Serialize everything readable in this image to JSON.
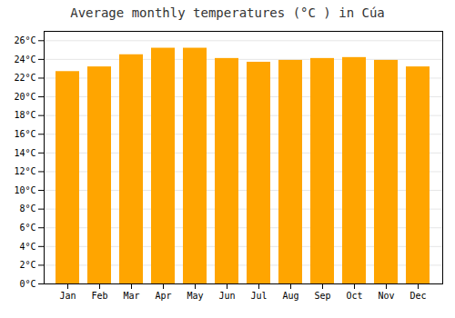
{
  "chart_data": {
    "type": "bar",
    "title": "Average monthly temperatures (°C ) in Cúa",
    "categories": [
      "Jan",
      "Feb",
      "Mar",
      "Apr",
      "May",
      "Jun",
      "Jul",
      "Aug",
      "Sep",
      "Oct",
      "Nov",
      "Dec"
    ],
    "values": [
      22.7,
      23.2,
      24.5,
      25.2,
      25.2,
      24.1,
      23.7,
      23.9,
      24.1,
      24.2,
      23.9,
      23.2
    ],
    "color": "#FFA500",
    "ylim": [
      0,
      27
    ],
    "yticks": [
      {
        "value": 0,
        "label": "0°C"
      },
      {
        "value": 2,
        "label": "2°C"
      },
      {
        "value": 4,
        "label": "4°C"
      },
      {
        "value": 6,
        "label": "6°C"
      },
      {
        "value": 8,
        "label": "8°C"
      },
      {
        "value": 10,
        "label": "10°C"
      },
      {
        "value": 12,
        "label": "12°C"
      },
      {
        "value": 14,
        "label": "14°C"
      },
      {
        "value": 16,
        "label": "16°C"
      },
      {
        "value": 18,
        "label": "18°C"
      },
      {
        "value": 20,
        "label": "20°C"
      },
      {
        "value": 22,
        "label": "22°C"
      },
      {
        "value": 24,
        "label": "24°C"
      },
      {
        "value": 26,
        "label": "26°C"
      }
    ],
    "grid": true
  }
}
